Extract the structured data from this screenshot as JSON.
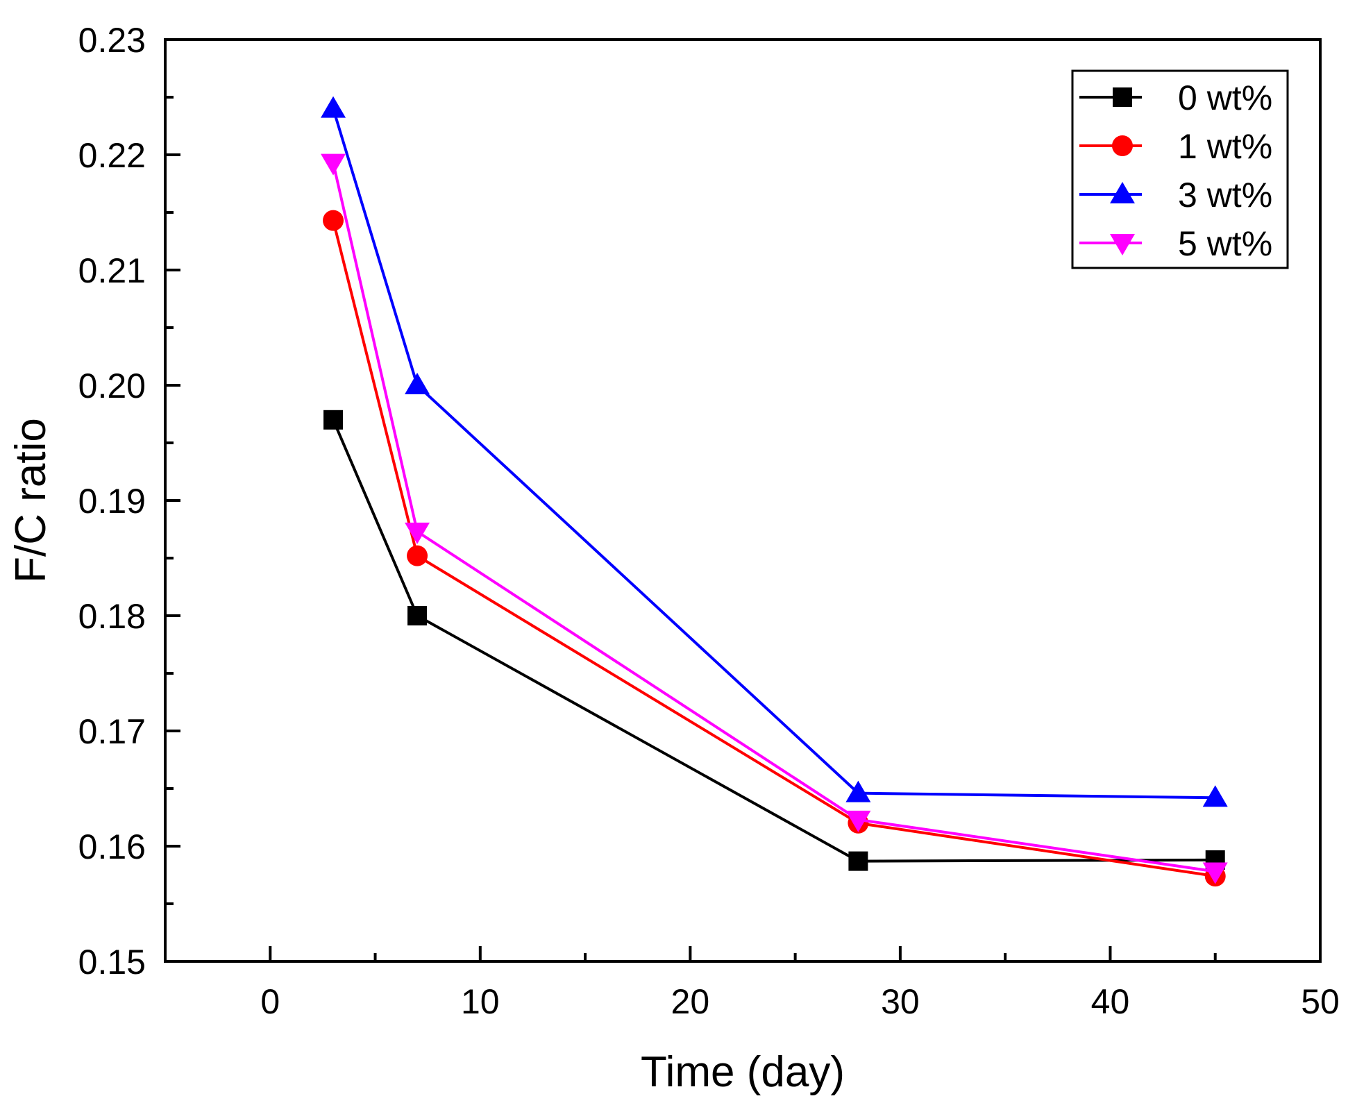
{
  "chart_data": {
    "type": "line",
    "xlabel": "Time (day)",
    "ylabel": "F/C ratio",
    "xlim": [
      -5,
      50
    ],
    "ylim": [
      0.15,
      0.23
    ],
    "xticks": [
      0,
      10,
      20,
      30,
      40,
      50
    ],
    "xtick_labels": [
      "0",
      "10",
      "20",
      "30",
      "40",
      "50"
    ],
    "xminor_ticks": [
      5,
      15,
      25,
      35,
      45
    ],
    "yticks": [
      0.15,
      0.16,
      0.17,
      0.18,
      0.19,
      0.2,
      0.21,
      0.22,
      0.23
    ],
    "ytick_labels": [
      "0.15",
      "0.16",
      "0.17",
      "0.18",
      "0.19",
      "0.20",
      "0.21",
      "0.22",
      "0.23"
    ],
    "yminor_ticks": [
      0.155,
      0.165,
      0.175,
      0.185,
      0.195,
      0.205,
      0.215,
      0.225
    ],
    "grid": false,
    "legend_position": "top-right",
    "x": [
      3,
      7,
      28,
      45
    ],
    "series": [
      {
        "name": "0 wt%",
        "color": "#000000",
        "marker": "square",
        "values": [
          0.197,
          0.18,
          0.1587,
          0.1588
        ]
      },
      {
        "name": "1 wt%",
        "color": "#ff0000",
        "marker": "circle",
        "values": [
          0.2143,
          0.1852,
          0.162,
          0.1574
        ]
      },
      {
        "name": "3 wt%",
        "color": "#0000ff",
        "marker": "triangle-up",
        "values": [
          0.224,
          0.2,
          0.1646,
          0.1642
        ]
      },
      {
        "name": "5 wt%",
        "color": "#ff00ff",
        "marker": "triangle-down",
        "values": [
          0.2193,
          0.1873,
          0.1623,
          0.1578
        ]
      }
    ]
  }
}
